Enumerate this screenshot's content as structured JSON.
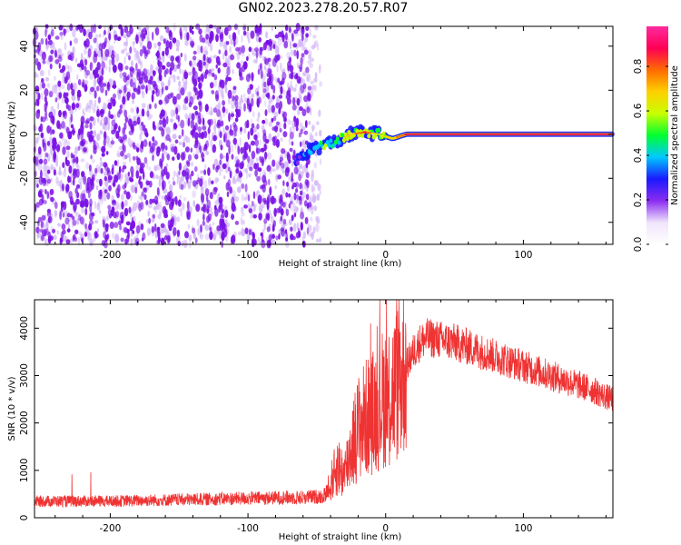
{
  "figure": {
    "title": "GN02.2023.278.20.57.R07"
  },
  "colors": {
    "snr_line": "#ef3333",
    "noise_primary": "#7a12e6",
    "noise_light": "#d3b8f6",
    "colormap": [
      "#ffffff",
      "#f0e4fb",
      "#8a2cf0",
      "#1a1aff",
      "#00c8ff",
      "#00ff30",
      "#c8ff00",
      "#ffd000",
      "#ff6a00",
      "#ff0055",
      "#ff2a9f"
    ]
  },
  "chart_data": [
    {
      "type": "heatmap",
      "xlabel": "Height of straight line (km)",
      "ylabel": "Frequency (Hz)",
      "xlim": [
        -255,
        165
      ],
      "ylim": [
        -50,
        49
      ],
      "xticks": [
        -200,
        -100,
        0,
        100
      ],
      "xtick_labels": [
        "-200",
        "-100",
        "0",
        "100"
      ],
      "yticks": [
        -40,
        -20,
        0,
        20,
        40
      ],
      "ytick_labels": [
        "-40",
        "-20",
        "0",
        "20",
        "40"
      ],
      "grid": false,
      "noise_region_x": [
        -255,
        -55
      ],
      "signal_track": {
        "x": [
          -65,
          -55,
          -45,
          -35,
          -25,
          -15,
          -5,
          5,
          15,
          40,
          80,
          120,
          165
        ],
        "freq": [
          -12,
          -7,
          -5,
          -3,
          0,
          1,
          0,
          -2,
          0,
          0,
          0,
          0,
          0
        ],
        "amplitude": [
          0.25,
          0.4,
          0.5,
          0.55,
          0.7,
          0.85,
          0.6,
          0.7,
          0.85,
          0.9,
          0.9,
          0.9,
          0.85
        ]
      },
      "colorbar": {
        "label": "Normalized spectral amplitude",
        "range": [
          0,
          0.98
        ],
        "ticks": [
          0.0,
          0.2,
          0.4,
          0.6,
          0.8
        ],
        "tick_labels": [
          "0.0",
          "0.2",
          "0.4",
          "0.6",
          "0.8"
        ]
      }
    },
    {
      "type": "line",
      "xlabel": "Height of straight line (km)",
      "ylabel": "SNR (10 * v/v)",
      "xlim": [
        -255,
        165
      ],
      "ylim": [
        0,
        4600
      ],
      "xticks": [
        -200,
        -100,
        0,
        100
      ],
      "xtick_labels": [
        "-200",
        "-100",
        "0",
        "100"
      ],
      "yticks": [
        0,
        1000,
        2000,
        3000,
        4000
      ],
      "ytick_labels": [
        "0",
        "1000",
        "2000",
        "3000",
        "4000"
      ],
      "grid": false,
      "series": [
        {
          "x": [
            -255,
            -200,
            -150,
            -100,
            -60,
            -45,
            -40,
            -35,
            -30,
            -25,
            -20,
            -15,
            -10,
            -5,
            0,
            5,
            10,
            15,
            20,
            25,
            30,
            40,
            50,
            60,
            70,
            80,
            90,
            100,
            110,
            120,
            130,
            140,
            150,
            160,
            165
          ],
          "y": [
            350,
            350,
            380,
            410,
            430,
            450,
            700,
            1100,
            900,
            1500,
            1900,
            2100,
            2200,
            2400,
            2600,
            2700,
            2900,
            3200,
            3500,
            3700,
            3800,
            3750,
            3700,
            3600,
            3500,
            3400,
            3300,
            3200,
            3100,
            3000,
            2900,
            2800,
            2700,
            2550,
            2500
          ]
        }
      ]
    }
  ]
}
